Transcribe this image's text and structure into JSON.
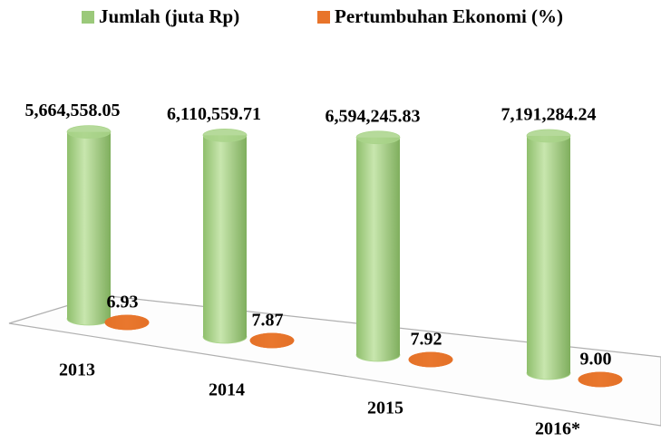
{
  "chart_data": {
    "type": "cylinder-bar",
    "categories": [
      "2013",
      "2014",
      "2015",
      "2016*"
    ],
    "series": [
      {
        "name": "Jumlah (juta Rp)",
        "color": "#9bc97a",
        "values": [
          5664558.05,
          6110559.71,
          6594245.83,
          7191284.24
        ],
        "value_labels": [
          "5,664,558.05",
          "6,110,559.71",
          "6,594,245.83",
          "7,191,284.24"
        ]
      },
      {
        "name": "Pertumbuhan Ekonomi (%)",
        "color": "#e8742a",
        "values": [
          6.93,
          7.87,
          7.92,
          9.0
        ],
        "value_labels": [
          "6.93",
          "7.87",
          "7.92",
          "9.00"
        ]
      }
    ]
  }
}
